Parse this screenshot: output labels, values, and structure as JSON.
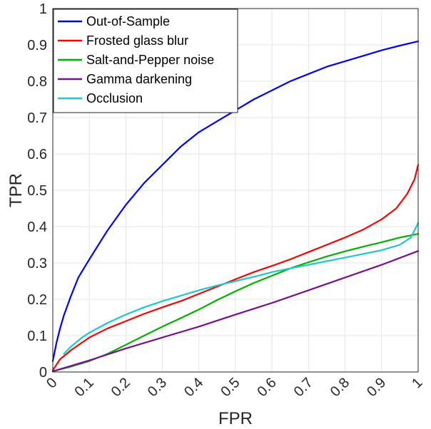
{
  "chart_data": {
    "type": "line",
    "xlabel": "FPR",
    "ylabel": "TPR",
    "xlim": [
      0,
      1
    ],
    "ylim": [
      0,
      1
    ],
    "xticks": [
      "0",
      "0.1",
      "0.2",
      "0.3",
      "0.4",
      "0.5",
      "0.6",
      "0.7",
      "0.8",
      "0.9",
      "1"
    ],
    "yticks": [
      "0",
      "0.1",
      "0.2",
      "0.3",
      "0.4",
      "0.5",
      "0.6",
      "0.7",
      "0.8",
      "0.9",
      "1"
    ],
    "grid": true,
    "legend_position": "top-left",
    "series": [
      {
        "name": "Out-of-Sample",
        "color": "#0000ff",
        "points": [
          [
            0.0,
            0.03
          ],
          [
            0.01,
            0.08
          ],
          [
            0.02,
            0.12
          ],
          [
            0.03,
            0.155
          ],
          [
            0.05,
            0.21
          ],
          [
            0.07,
            0.26
          ],
          [
            0.1,
            0.31
          ],
          [
            0.15,
            0.39
          ],
          [
            0.2,
            0.46
          ],
          [
            0.25,
            0.52
          ],
          [
            0.3,
            0.57
          ],
          [
            0.35,
            0.62
          ],
          [
            0.4,
            0.66
          ],
          [
            0.45,
            0.69
          ],
          [
            0.5,
            0.72
          ],
          [
            0.55,
            0.75
          ],
          [
            0.6,
            0.775
          ],
          [
            0.65,
            0.8
          ],
          [
            0.7,
            0.82
          ],
          [
            0.75,
            0.84
          ],
          [
            0.8,
            0.855
          ],
          [
            0.85,
            0.87
          ],
          [
            0.9,
            0.885
          ],
          [
            0.95,
            0.898
          ],
          [
            1.0,
            0.91
          ]
        ]
      },
      {
        "name": "Frosted glass blur",
        "color": "#ff0000",
        "points": [
          [
            0.0,
            0.005
          ],
          [
            0.02,
            0.035
          ],
          [
            0.05,
            0.06
          ],
          [
            0.1,
            0.095
          ],
          [
            0.15,
            0.12
          ],
          [
            0.2,
            0.14
          ],
          [
            0.25,
            0.16
          ],
          [
            0.3,
            0.178
          ],
          [
            0.35,
            0.195
          ],
          [
            0.4,
            0.215
          ],
          [
            0.45,
            0.235
          ],
          [
            0.5,
            0.255
          ],
          [
            0.55,
            0.275
          ],
          [
            0.6,
            0.292
          ],
          [
            0.65,
            0.31
          ],
          [
            0.7,
            0.33
          ],
          [
            0.75,
            0.35
          ],
          [
            0.8,
            0.37
          ],
          [
            0.85,
            0.392
          ],
          [
            0.9,
            0.42
          ],
          [
            0.94,
            0.45
          ],
          [
            0.97,
            0.49
          ],
          [
            0.99,
            0.53
          ],
          [
            1.0,
            0.57
          ]
        ]
      },
      {
        "name": "Salt-and-Pepper noise",
        "color": "#00b000",
        "points": [
          [
            0.0,
            0.002
          ],
          [
            0.05,
            0.015
          ],
          [
            0.1,
            0.03
          ],
          [
            0.15,
            0.05
          ],
          [
            0.2,
            0.075
          ],
          [
            0.25,
            0.1
          ],
          [
            0.3,
            0.125
          ],
          [
            0.35,
            0.148
          ],
          [
            0.4,
            0.172
          ],
          [
            0.45,
            0.198
          ],
          [
            0.5,
            0.222
          ],
          [
            0.55,
            0.245
          ],
          [
            0.6,
            0.265
          ],
          [
            0.65,
            0.285
          ],
          [
            0.7,
            0.302
          ],
          [
            0.75,
            0.318
          ],
          [
            0.8,
            0.332
          ],
          [
            0.85,
            0.345
          ],
          [
            0.9,
            0.357
          ],
          [
            0.95,
            0.37
          ],
          [
            1.0,
            0.38
          ]
        ]
      },
      {
        "name": "Gamma darkening",
        "color": "#7b108f",
        "points": [
          [
            0.0,
            0.002
          ],
          [
            0.1,
            0.032
          ],
          [
            0.2,
            0.065
          ],
          [
            0.3,
            0.095
          ],
          [
            0.4,
            0.125
          ],
          [
            0.5,
            0.158
          ],
          [
            0.6,
            0.19
          ],
          [
            0.7,
            0.225
          ],
          [
            0.8,
            0.26
          ],
          [
            0.9,
            0.295
          ],
          [
            1.0,
            0.333
          ]
        ]
      },
      {
        "name": "Occlusion",
        "color": "#1ec8c8",
        "points": [
          [
            0.03,
            0.05
          ],
          [
            0.05,
            0.07
          ],
          [
            0.08,
            0.095
          ],
          [
            0.1,
            0.108
          ],
          [
            0.15,
            0.135
          ],
          [
            0.2,
            0.158
          ],
          [
            0.25,
            0.178
          ],
          [
            0.3,
            0.195
          ],
          [
            0.35,
            0.21
          ],
          [
            0.4,
            0.225
          ],
          [
            0.45,
            0.238
          ],
          [
            0.5,
            0.25
          ],
          [
            0.55,
            0.262
          ],
          [
            0.6,
            0.275
          ],
          [
            0.65,
            0.285
          ],
          [
            0.7,
            0.295
          ],
          [
            0.75,
            0.305
          ],
          [
            0.8,
            0.315
          ],
          [
            0.85,
            0.325
          ],
          [
            0.9,
            0.335
          ],
          [
            0.95,
            0.35
          ],
          [
            0.98,
            0.37
          ],
          [
            1.0,
            0.41
          ]
        ]
      }
    ]
  }
}
